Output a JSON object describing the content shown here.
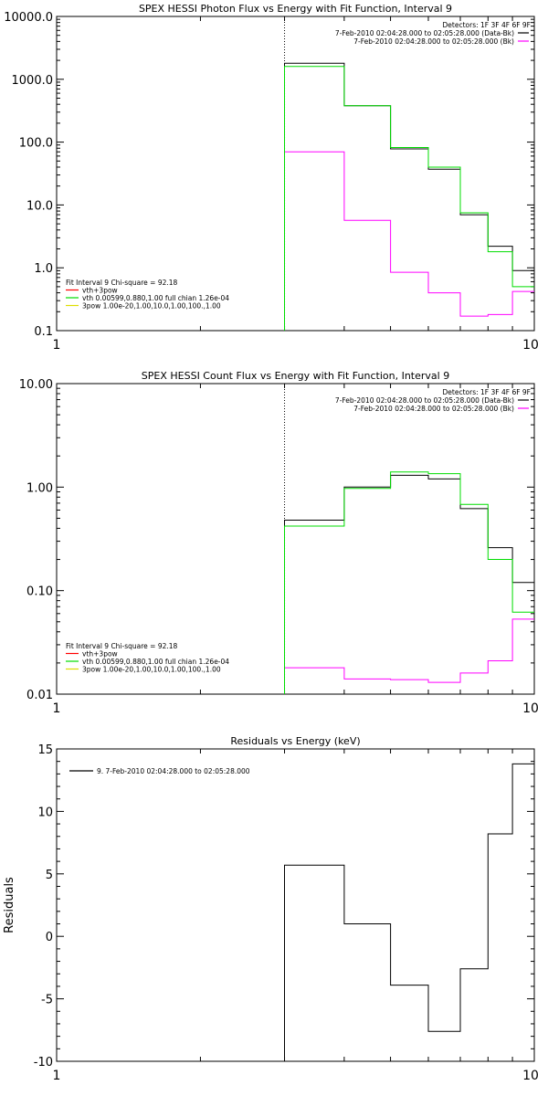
{
  "chart_data": [
    {
      "type": "line",
      "title": "SPEX HESSI Photon Flux vs Energy with Fit Function, Interval 9",
      "xscale": "log",
      "yscale": "log",
      "xlim": [
        1,
        10
      ],
      "ylim": [
        0.1,
        10000
      ],
      "x_ticks": [
        "1",
        "10"
      ],
      "y_ticks": [
        {
          "v": 0.1,
          "label": "0.1"
        },
        {
          "v": 1,
          "label": "1.0"
        },
        {
          "v": 10,
          "label": "10.0"
        },
        {
          "v": 100,
          "label": "100.0"
        },
        {
          "v": 1000,
          "label": "1000.0"
        },
        {
          "v": 10000,
          "label": "10000.0"
        }
      ],
      "vline_x": 3,
      "legend_right": [
        {
          "text": "Detectors: 1F 3F 4F 6F 9F",
          "color": ""
        },
        {
          "text": "7-Feb-2010 02:04:28.000 to 02:05:28.000 (Data-Bk)",
          "color": "#000000"
        },
        {
          "text": "7-Feb-2010 02:04:28.000 to 02:05:28.000 (Bk)",
          "color": "#ff00ff"
        }
      ],
      "legend_left": [
        {
          "text": "Fit Interval 9    Chi-square = 92.18",
          "color": ""
        },
        {
          "text": "vth+3pow",
          "color": "#ff0000"
        },
        {
          "text": "vth 0.00599,0.880,1.00  full chian 1.26e-04",
          "color": "#00dd00"
        },
        {
          "text": "3pow 1.00e-20,1.00,10.0,1.00,100.,1.00",
          "color": "#dddd00"
        }
      ],
      "edges": [
        3,
        4,
        5,
        6,
        7,
        8,
        9,
        10
      ],
      "series": [
        {
          "color": "#000000",
          "values": [
            1800,
            380,
            78,
            37,
            7,
            2.2,
            0.9
          ]
        },
        {
          "color": "#ff00ff",
          "values": [
            70,
            5.7,
            0.85,
            0.4,
            0.17,
            0.18,
            0.42
          ]
        },
        {
          "color": "#00dd00",
          "values": [
            1600,
            380,
            82,
            40,
            7.5,
            1.8,
            0.5
          ]
        }
      ]
    },
    {
      "type": "line",
      "title": "SPEX HESSI Count Flux vs Energy with Fit Function, Interval 9",
      "xscale": "log",
      "yscale": "log",
      "xlim": [
        1,
        10
      ],
      "ylim": [
        0.01,
        10
      ],
      "x_ticks": [
        "1",
        "10"
      ],
      "y_ticks": [
        {
          "v": 0.01,
          "label": "0.01"
        },
        {
          "v": 0.1,
          "label": "0.10"
        },
        {
          "v": 1,
          "label": "1.00"
        },
        {
          "v": 10,
          "label": "10.00"
        }
      ],
      "vline_x": 3,
      "legend_right": [
        {
          "text": "Detectors: 1F 3F 4F 6F 9F",
          "color": ""
        },
        {
          "text": "7-Feb-2010 02:04:28.000 to 02:05:28.000 (Data-Bk)",
          "color": "#000000"
        },
        {
          "text": "7-Feb-2010 02:04:28.000 to 02:05:28.000 (Bk)",
          "color": "#ff00ff"
        }
      ],
      "legend_left": [
        {
          "text": "Fit Interval 9    Chi-square = 92.18",
          "color": ""
        },
        {
          "text": "vth+3pow",
          "color": "#ff0000"
        },
        {
          "text": "vth 0.00599,0.880,1.00  full chian 1.26e-04",
          "color": "#00dd00"
        },
        {
          "text": "3pow 1.00e-20,1.00,10.0,1.00,100.,1.00",
          "color": "#dddd00"
        }
      ],
      "edges": [
        3,
        4,
        5,
        6,
        7,
        8,
        9,
        10
      ],
      "series": [
        {
          "color": "#000000",
          "values": [
            0.48,
            1.0,
            1.3,
            1.2,
            0.62,
            0.26,
            0.12
          ]
        },
        {
          "color": "#ff00ff",
          "values": [
            0.018,
            0.014,
            0.0138,
            0.013,
            0.016,
            0.021,
            0.053
          ]
        },
        {
          "color": "#00dd00",
          "values": [
            0.42,
            0.97,
            1.4,
            1.35,
            0.68,
            0.2,
            0.062
          ]
        }
      ]
    },
    {
      "type": "line",
      "title": "Residuals vs Energy (keV)",
      "xscale": "log",
      "yscale": "linear",
      "xlim": [
        1,
        10
      ],
      "ylim": [
        -10,
        15
      ],
      "ylabel": "Residuals",
      "x_ticks": [
        "1",
        "10"
      ],
      "y_ticks": [
        {
          "v": -10,
          "label": "-10"
        },
        {
          "v": -5,
          "label": "-5"
        },
        {
          "v": 0,
          "label": "0"
        },
        {
          "v": 5,
          "label": "5"
        },
        {
          "v": 10,
          "label": "10"
        },
        {
          "v": 15,
          "label": "15"
        }
      ],
      "legend_left": [
        {
          "text": "9.  7-Feb-2010 02:04:28.000 to 02:05:28.000",
          "color": "#000000"
        }
      ],
      "edges": [
        3,
        4,
        5,
        6,
        7,
        8,
        9,
        10
      ],
      "series": [
        {
          "color": "#000000",
          "values": [
            5.7,
            1.0,
            -3.9,
            -7.6,
            -2.6,
            8.2,
            13.8
          ]
        }
      ]
    }
  ]
}
